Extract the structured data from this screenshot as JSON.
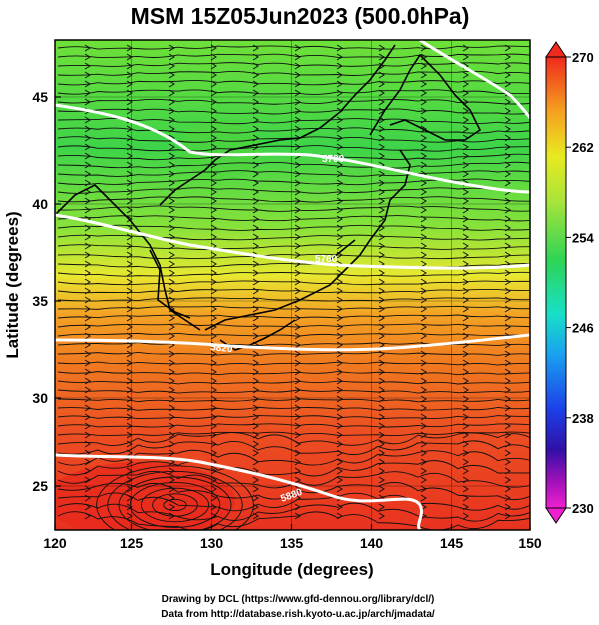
{
  "title": "MSM 15Z05Jun2023 (500.0hPa)",
  "x_axis": {
    "label": "Longitude (degrees)",
    "ticks": [
      "120",
      "125",
      "130",
      "135",
      "140",
      "145",
      "150"
    ]
  },
  "y_axis": {
    "label": "Latitude  (degrees)",
    "ticks": [
      "25",
      "30",
      "35",
      "40",
      "45"
    ]
  },
  "colorbar": {
    "ticks": [
      "270",
      "262",
      "254",
      "246",
      "238",
      "230"
    ]
  },
  "contours": [
    "5880",
    "5820",
    "5760",
    "5700",
    "5640"
  ],
  "credits": {
    "line1": "Drawing by DCL (https://www.gfd-dennou.org/library/dcl/)",
    "line2": "Data from http://database.rish.kyoto-u.ac.jp/arch/jmadata/"
  }
}
